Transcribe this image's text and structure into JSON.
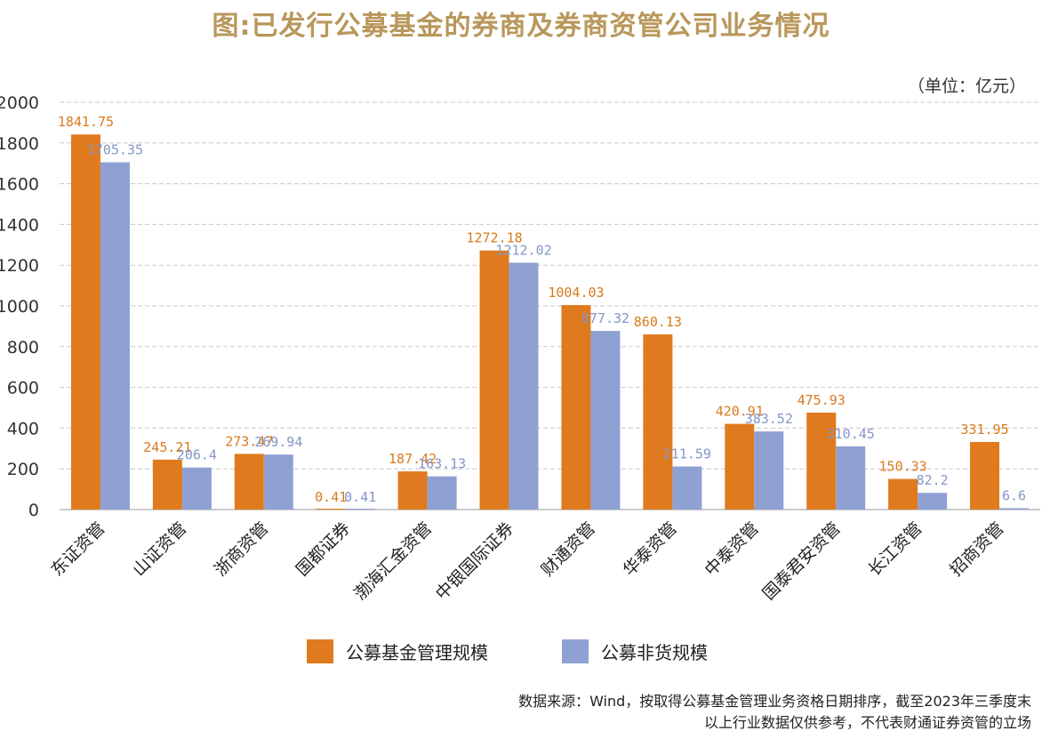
{
  "title": "图:已发行公募基金的券商及券商资管公司业务情况",
  "unit": "（单位：亿元）",
  "source_line1": "数据来源：Wind，按取得公募基金管理业务资格日期排序，截至2023年三季度末",
  "source_line2": "以上行业数据仅供参考，不代表财通证券资管的立场",
  "colors": {
    "series1": "#e07a1e",
    "series2": "#8fa1d3",
    "s1_label": "#d97a1e",
    "s2_label": "#8496c8",
    "grid": "#c9c9c9"
  },
  "chart_data": {
    "type": "bar",
    "categories": [
      "东证资管",
      "山证资管",
      "浙商资管",
      "国都证券",
      "渤海汇金资管",
      "中银国际证券",
      "财通资管",
      "华泰资管",
      "中泰资管",
      "国泰君安资管",
      "长江资管",
      "招商资管"
    ],
    "series": [
      {
        "name": "公募基金管理规模",
        "values": [
          1841.75,
          245.21,
          273.47,
          0.41,
          187.42,
          1272.18,
          1004.03,
          860.13,
          420.91,
          475.93,
          150.33,
          331.95
        ],
        "labels": [
          "1841.75",
          "245.21",
          "273.47",
          "0.41",
          "187.42",
          "1272.18",
          "1004.03",
          "860.13",
          "420.91",
          "475.93",
          "150.33",
          "331.95"
        ]
      },
      {
        "name": "公募非货规模",
        "values": [
          1705.35,
          206.4,
          269.94,
          0.41,
          163.13,
          1212.02,
          877.32,
          211.59,
          383.52,
          310.45,
          82.2,
          6.6
        ],
        "labels": [
          "1705.35",
          "206.4",
          "269.94",
          "0.41",
          "163.13",
          "1212.02",
          "877.32",
          "211.59",
          "383.52",
          "310.45",
          "82.2",
          "6.6"
        ]
      }
    ],
    "yticks": [
      0,
      200,
      400,
      600,
      800,
      1000,
      1200,
      1400,
      1600,
      1800,
      2000
    ],
    "ylim": [
      0,
      2000
    ],
    "grid": true,
    "legend_position": "bottom"
  }
}
